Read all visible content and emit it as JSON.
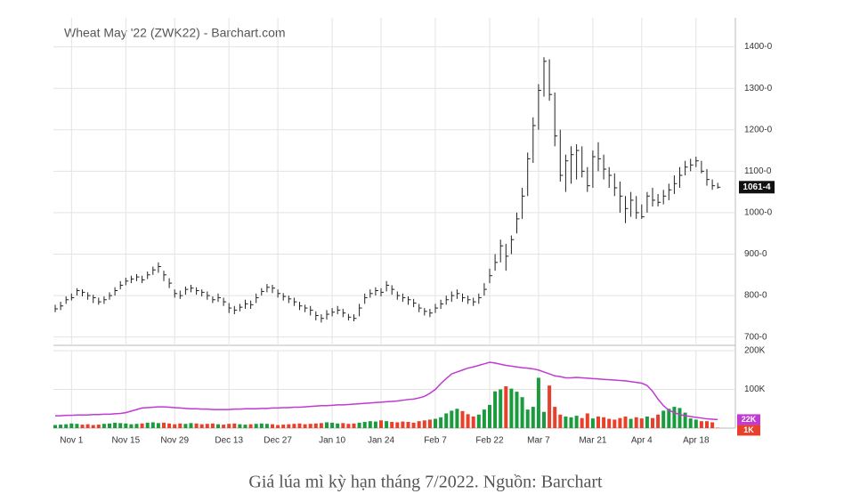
{
  "chart_data": {
    "type": "ohlc",
    "title": "Wheat May '22 (ZWK22) - Barchart.com",
    "caption": "Giá lúa mì kỳ hạn tháng 7/2022. Nguồn: Barchart",
    "categories": [
      null,
      null,
      null,
      "Nov 1",
      null,
      null,
      null,
      null,
      null,
      null,
      null,
      null,
      null,
      "Nov 15",
      null,
      null,
      null,
      null,
      null,
      null,
      null,
      null,
      "Nov 29",
      null,
      null,
      null,
      null,
      null,
      null,
      null,
      null,
      null,
      "Dec 13",
      null,
      null,
      null,
      null,
      null,
      null,
      null,
      null,
      "Dec 27",
      null,
      null,
      null,
      null,
      null,
      null,
      null,
      null,
      null,
      "Jan 10",
      null,
      null,
      null,
      null,
      null,
      null,
      null,
      null,
      "Jan 24",
      null,
      null,
      null,
      null,
      null,
      null,
      null,
      null,
      null,
      "Feb 7",
      null,
      null,
      null,
      null,
      null,
      null,
      null,
      null,
      null,
      "Feb 22",
      null,
      null,
      null,
      null,
      null,
      null,
      null,
      null,
      "Mar 7",
      null,
      null,
      null,
      null,
      null,
      null,
      null,
      null,
      null,
      "Mar 21",
      null,
      null,
      null,
      null,
      null,
      null,
      null,
      null,
      "Apr 4",
      null,
      null,
      null,
      null,
      null,
      null,
      null,
      null,
      null,
      "Apr 18",
      null,
      null,
      null,
      null
    ],
    "high": [
      778,
      785,
      798,
      805,
      818,
      815,
      808,
      802,
      795,
      798,
      808,
      820,
      835,
      843,
      848,
      852,
      848,
      858,
      870,
      880,
      860,
      842,
      815,
      812,
      822,
      826,
      820,
      815,
      810,
      798,
      805,
      795,
      782,
      775,
      780,
      790,
      788,
      805,
      818,
      828,
      826,
      815,
      806,
      800,
      795,
      785,
      778,
      775,
      762,
      755,
      765,
      770,
      775,
      768,
      756,
      755,
      780,
      805,
      815,
      820,
      818,
      835,
      825,
      810,
      805,
      798,
      792,
      780,
      770,
      768,
      780,
      790,
      800,
      810,
      815,
      805,
      800,
      795,
      805,
      830,
      865,
      900,
      935,
      925,
      945,
      1000,
      1060,
      1145,
      1230,
      1310,
      1375,
      1370,
      1290,
      1200,
      1140,
      1160,
      1165,
      1160,
      1110,
      1150,
      1170,
      1140,
      1110,
      1095,
      1075,
      1040,
      1050,
      1040,
      1020,
      1050,
      1060,
      1045,
      1055,
      1070,
      1090,
      1110,
      1125,
      1130,
      1135,
      1125,
      1105,
      1080,
      1072
    ],
    "low": [
      760,
      765,
      780,
      788,
      800,
      798,
      790,
      782,
      778,
      780,
      790,
      800,
      815,
      825,
      830,
      835,
      830,
      840,
      850,
      855,
      835,
      818,
      795,
      792,
      802,
      808,
      802,
      798,
      790,
      782,
      785,
      775,
      758,
      755,
      762,
      768,
      768,
      782,
      800,
      808,
      806,
      795,
      788,
      782,
      775,
      765,
      760,
      752,
      740,
      735,
      742,
      750,
      755,
      748,
      740,
      738,
      750,
      780,
      795,
      800,
      798,
      810,
      802,
      790,
      785,
      778,
      772,
      760,
      752,
      748,
      758,
      768,
      778,
      785,
      792,
      785,
      780,
      775,
      780,
      800,
      830,
      860,
      880,
      860,
      900,
      950,
      985,
      1040,
      1120,
      1200,
      1280,
      1270,
      1160,
      1075,
      1050,
      1070,
      1080,
      1085,
      1050,
      1060,
      1100,
      1080,
      1060,
      1040,
      1000,
      975,
      990,
      985,
      985,
      1000,
      1015,
      1015,
      1020,
      1030,
      1045,
      1060,
      1090,
      1100,
      1110,
      1095,
      1065,
      1055,
      1058
    ],
    "close": [
      768,
      775,
      790,
      795,
      812,
      808,
      800,
      795,
      785,
      790,
      800,
      812,
      825,
      835,
      840,
      845,
      838,
      850,
      862,
      870,
      850,
      830,
      805,
      800,
      815,
      818,
      812,
      808,
      800,
      790,
      795,
      785,
      770,
      765,
      772,
      780,
      778,
      795,
      810,
      820,
      818,
      805,
      798,
      792,
      785,
      775,
      770,
      765,
      752,
      745,
      755,
      760,
      765,
      758,
      748,
      745,
      770,
      795,
      805,
      812,
      808,
      825,
      815,
      800,
      795,
      790,
      782,
      770,
      762,
      758,
      770,
      780,
      790,
      800,
      805,
      795,
      790,
      785,
      795,
      815,
      848,
      880,
      920,
      895,
      935,
      985,
      1040,
      1130,
      1210,
      1295,
      1365,
      1285,
      1185,
      1090,
      1125,
      1140,
      1150,
      1100,
      1065,
      1135,
      1130,
      1105,
      1090,
      1060,
      1040,
      1010,
      1030,
      1000,
      990,
      1040,
      1030,
      1025,
      1040,
      1055,
      1070,
      1090,
      1110,
      1115,
      1125,
      1100,
      1080,
      1065,
      1061.5
    ],
    "color": "#222222",
    "ylim": [
      680,
      1470
    ],
    "yticks": [
      {
        "value": 700,
        "label": "700-0"
      },
      {
        "value": 800,
        "label": "800-0"
      },
      {
        "value": 900,
        "label": "900-0"
      },
      {
        "value": 1000,
        "label": "1000-0"
      },
      {
        "value": 1100,
        "label": "1100-0"
      },
      {
        "value": 1200,
        "label": "1200-0"
      },
      {
        "value": 1300,
        "label": "1300-0"
      },
      {
        "value": 1400,
        "label": "1400-0"
      }
    ],
    "last_price_label": "1061-4",
    "grid": true,
    "volume": {
      "values": [
        8,
        9,
        10,
        12,
        11,
        9,
        10,
        8,
        9,
        11,
        12,
        14,
        13,
        12,
        10,
        11,
        12,
        14,
        15,
        13,
        14,
        12,
        10,
        12,
        11,
        13,
        12,
        10,
        11,
        12,
        10,
        9,
        11,
        12,
        10,
        9,
        10,
        11,
        12,
        11,
        10,
        8,
        9,
        10,
        11,
        12,
        10,
        11,
        12,
        13,
        15,
        14,
        12,
        13,
        11,
        12,
        14,
        16,
        18,
        17,
        20,
        18,
        16,
        15,
        17,
        16,
        14,
        18,
        20,
        22,
        24,
        28,
        38,
        45,
        50,
        44,
        36,
        30,
        35,
        48,
        60,
        95,
        100,
        108,
        102,
        94,
        80,
        48,
        55,
        130,
        42,
        110,
        55,
        35,
        30,
        28,
        32,
        26,
        38,
        25,
        30,
        28,
        24,
        22,
        26,
        30,
        24,
        28,
        25,
        30,
        26,
        35,
        45,
        50,
        55,
        52,
        40,
        25,
        22,
        18,
        18,
        15,
        1
      ],
      "up_color": "#1a9c3e",
      "down_color": "#e8402a",
      "ylim": [
        0,
        200
      ],
      "yticks": [
        {
          "value": 100,
          "label": "100K"
        },
        {
          "value": 200,
          "label": "200K"
        }
      ],
      "last_label": "1K"
    },
    "open_interest": {
      "color": "#c13ad1",
      "values": [
        32,
        32,
        33,
        33,
        34,
        34,
        34,
        35,
        35,
        36,
        36,
        37,
        38,
        40,
        44,
        48,
        52,
        53,
        54,
        55,
        55,
        54,
        53,
        52,
        51,
        50,
        50,
        49,
        49,
        48,
        48,
        48,
        48,
        49,
        49,
        50,
        50,
        50,
        51,
        51,
        52,
        52,
        53,
        53,
        54,
        54,
        55,
        56,
        57,
        58,
        58,
        59,
        60,
        60,
        61,
        62,
        63,
        64,
        65,
        66,
        67,
        68,
        69,
        70,
        72,
        74,
        75,
        78,
        82,
        90,
        100,
        115,
        128,
        140,
        145,
        150,
        155,
        158,
        162,
        166,
        170,
        168,
        165,
        162,
        160,
        158,
        156,
        155,
        153,
        150,
        145,
        140,
        135,
        133,
        130,
        130,
        131,
        130,
        129,
        128,
        127,
        126,
        125,
        124,
        123,
        122,
        120,
        118,
        116,
        110,
        95,
        75,
        58,
        46,
        40,
        35,
        32,
        30,
        28,
        26,
        24,
        23,
        22
      ],
      "last_label": "22K"
    }
  }
}
